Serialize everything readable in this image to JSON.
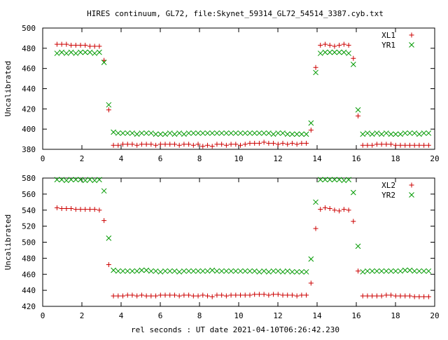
{
  "figure": {
    "title": "HIRES continuum, GL72, file:Skynet_59314_GL72_54514_3387.cyb.txt",
    "xlabel": "rel seconds : UT date 2021-04-10T06:26:42.230"
  },
  "colors": {
    "xl": "#cc0000",
    "yr": "#009900",
    "axis": "#000000"
  },
  "chart_data": [
    {
      "type": "scatter",
      "ylabel": "Uncalibrated",
      "xlim": [
        0,
        20
      ],
      "ylim": [
        380,
        500
      ],
      "xticks": [
        0,
        2,
        4,
        6,
        8,
        10,
        12,
        14,
        16,
        18,
        20
      ],
      "yticks": [
        380,
        400,
        420,
        440,
        460,
        480,
        500
      ],
      "grid": false,
      "legend_position": "top-right",
      "series": [
        {
          "name": "XL1",
          "marker": "plus",
          "color": "#cc0000",
          "x": [
            0.73,
            0.97,
            1.21,
            1.45,
            1.69,
            1.93,
            2.17,
            2.41,
            2.65,
            2.89,
            3.13,
            3.37,
            3.61,
            3.85,
            4.09,
            4.33,
            4.57,
            4.81,
            5.05,
            5.29,
            5.53,
            5.77,
            6.01,
            6.25,
            6.49,
            6.73,
            6.97,
            7.21,
            7.45,
            7.69,
            7.93,
            8.17,
            8.41,
            8.65,
            8.89,
            9.13,
            9.37,
            9.61,
            9.85,
            10.09,
            10.33,
            10.57,
            10.81,
            11.05,
            11.29,
            11.53,
            11.77,
            12.01,
            12.25,
            12.49,
            12.73,
            12.97,
            13.21,
            13.45,
            13.69,
            13.93,
            14.17,
            14.41,
            14.65,
            14.89,
            15.13,
            15.37,
            15.61,
            15.85,
            16.09,
            16.33,
            16.57,
            16.81,
            17.05,
            17.29,
            17.53,
            17.77,
            18.01,
            18.25,
            18.49,
            18.73,
            18.97,
            19.21,
            19.45,
            19.69
          ],
          "y": [
            484,
            484,
            484,
            483,
            483,
            483,
            483,
            482,
            482,
            482,
            468,
            419,
            384,
            384,
            385,
            385,
            385,
            384,
            385,
            385,
            385,
            384,
            385,
            385,
            385,
            385,
            384,
            385,
            385,
            384,
            385,
            383,
            384,
            383,
            385,
            385,
            384,
            385,
            385,
            384,
            385,
            386,
            386,
            386,
            387,
            386,
            386,
            385,
            386,
            385,
            386,
            385,
            386,
            386,
            399,
            461,
            483,
            484,
            483,
            482,
            483,
            484,
            483,
            470,
            413,
            384,
            384,
            384,
            385,
            385,
            385,
            385,
            384,
            384,
            384,
            384,
            384,
            384,
            384,
            384
          ]
        },
        {
          "name": "YR1",
          "marker": "cross",
          "color": "#009900",
          "x": [
            0.73,
            0.97,
            1.21,
            1.45,
            1.69,
            1.93,
            2.17,
            2.41,
            2.65,
            2.89,
            3.13,
            3.37,
            3.61,
            3.85,
            4.09,
            4.33,
            4.57,
            4.81,
            5.05,
            5.29,
            5.53,
            5.77,
            6.01,
            6.25,
            6.49,
            6.73,
            6.97,
            7.21,
            7.45,
            7.69,
            7.93,
            8.17,
            8.41,
            8.65,
            8.89,
            9.13,
            9.37,
            9.61,
            9.85,
            10.09,
            10.33,
            10.57,
            10.81,
            11.05,
            11.29,
            11.53,
            11.77,
            12.01,
            12.25,
            12.49,
            12.73,
            12.97,
            13.21,
            13.45,
            13.69,
            13.93,
            14.17,
            14.41,
            14.65,
            14.89,
            15.13,
            15.37,
            15.61,
            15.85,
            16.09,
            16.33,
            16.57,
            16.81,
            17.05,
            17.29,
            17.53,
            17.77,
            18.01,
            18.25,
            18.49,
            18.73,
            18.97,
            19.21,
            19.45,
            19.69
          ],
          "y": [
            475,
            476,
            475,
            476,
            475,
            476,
            476,
            476,
            475,
            476,
            466,
            424,
            397,
            396,
            396,
            396,
            396,
            395,
            396,
            396,
            396,
            395,
            395,
            395,
            396,
            395,
            396,
            395,
            396,
            396,
            396,
            396,
            396,
            396,
            396,
            396,
            396,
            396,
            396,
            396,
            396,
            396,
            396,
            396,
            396,
            396,
            395,
            396,
            396,
            395,
            395,
            395,
            395,
            395,
            406,
            456,
            475,
            476,
            476,
            476,
            476,
            476,
            475,
            464,
            419,
            395,
            396,
            395,
            396,
            395,
            396,
            395,
            395,
            395,
            396,
            396,
            396,
            395,
            396,
            396
          ]
        }
      ]
    },
    {
      "type": "scatter",
      "ylabel": "Uncalibrated",
      "xlim": [
        0,
        20
      ],
      "ylim": [
        420,
        580
      ],
      "xticks": [
        0,
        2,
        4,
        6,
        8,
        10,
        12,
        14,
        16,
        18,
        20
      ],
      "yticks": [
        420,
        440,
        460,
        480,
        500,
        520,
        540,
        560,
        580
      ],
      "grid": false,
      "legend_position": "top-right",
      "series": [
        {
          "name": "XL2",
          "marker": "plus",
          "color": "#cc0000",
          "x": [
            0.73,
            0.97,
            1.21,
            1.45,
            1.69,
            1.93,
            2.17,
            2.41,
            2.65,
            2.89,
            3.13,
            3.37,
            3.61,
            3.85,
            4.09,
            4.33,
            4.57,
            4.81,
            5.05,
            5.29,
            5.53,
            5.77,
            6.01,
            6.25,
            6.49,
            6.73,
            6.97,
            7.21,
            7.45,
            7.69,
            7.93,
            8.17,
            8.41,
            8.65,
            8.89,
            9.13,
            9.37,
            9.61,
            9.85,
            10.09,
            10.33,
            10.57,
            10.81,
            11.05,
            11.29,
            11.53,
            11.77,
            12.01,
            12.25,
            12.49,
            12.73,
            12.97,
            13.21,
            13.45,
            13.69,
            13.93,
            14.17,
            14.41,
            14.65,
            14.89,
            15.13,
            15.37,
            15.61,
            15.85,
            16.09,
            16.33,
            16.57,
            16.81,
            17.05,
            17.29,
            17.53,
            17.77,
            18.01,
            18.25,
            18.49,
            18.73,
            18.97,
            19.21,
            19.45,
            19.69
          ],
          "y": [
            543,
            542,
            542,
            542,
            541,
            541,
            541,
            541,
            541,
            540,
            527,
            472,
            433,
            433,
            433,
            434,
            434,
            433,
            434,
            433,
            433,
            433,
            434,
            434,
            434,
            434,
            433,
            434,
            434,
            433,
            433,
            434,
            433,
            432,
            434,
            434,
            433,
            434,
            434,
            434,
            434,
            434,
            435,
            435,
            435,
            434,
            435,
            435,
            434,
            434,
            434,
            433,
            434,
            434,
            449,
            517,
            541,
            543,
            542,
            540,
            539,
            541,
            540,
            526,
            464,
            433,
            433,
            433,
            433,
            433,
            434,
            434,
            433,
            433,
            433,
            433,
            432,
            432,
            432,
            432
          ]
        },
        {
          "name": "YR2",
          "marker": "cross",
          "color": "#009900",
          "x": [
            0.73,
            0.97,
            1.21,
            1.45,
            1.69,
            1.93,
            2.17,
            2.41,
            2.65,
            2.89,
            3.13,
            3.37,
            3.61,
            3.85,
            4.09,
            4.33,
            4.57,
            4.81,
            5.05,
            5.29,
            5.53,
            5.77,
            6.01,
            6.25,
            6.49,
            6.73,
            6.97,
            7.21,
            7.45,
            7.69,
            7.93,
            8.17,
            8.41,
            8.65,
            8.89,
            9.13,
            9.37,
            9.61,
            9.85,
            10.09,
            10.33,
            10.57,
            10.81,
            11.05,
            11.29,
            11.53,
            11.77,
            12.01,
            12.25,
            12.49,
            12.73,
            12.97,
            13.21,
            13.45,
            13.69,
            13.93,
            14.17,
            14.41,
            14.65,
            14.89,
            15.13,
            15.37,
            15.61,
            15.85,
            16.09,
            16.33,
            16.57,
            16.81,
            17.05,
            17.29,
            17.53,
            17.77,
            18.01,
            18.25,
            18.49,
            18.73,
            18.97,
            19.21,
            19.45,
            19.69
          ],
          "y": [
            578,
            578,
            577,
            578,
            578,
            578,
            577,
            578,
            577,
            578,
            564,
            505,
            465,
            464,
            464,
            464,
            464,
            464,
            465,
            465,
            464,
            464,
            463,
            464,
            464,
            464,
            463,
            464,
            464,
            464,
            464,
            464,
            464,
            465,
            464,
            464,
            464,
            464,
            464,
            464,
            464,
            464,
            464,
            463,
            464,
            463,
            464,
            464,
            463,
            464,
            463,
            463,
            463,
            463,
            479,
            550,
            578,
            578,
            578,
            578,
            578,
            577,
            578,
            562,
            495,
            463,
            464,
            464,
            464,
            464,
            464,
            464,
            464,
            464,
            465,
            465,
            464,
            464,
            464,
            464
          ]
        }
      ]
    }
  ]
}
